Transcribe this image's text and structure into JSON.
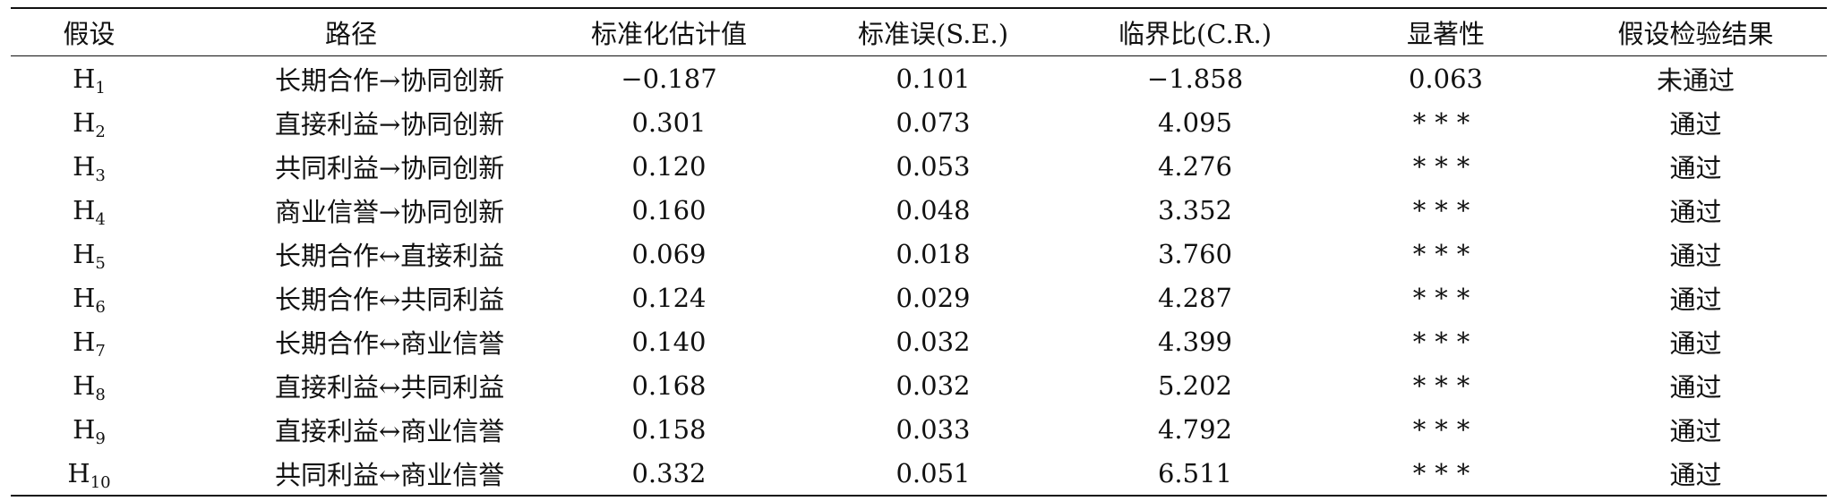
{
  "table": {
    "headers": [
      "假设",
      "路径",
      "标准化估计值",
      "标准误(S.E.)",
      "临界比(C.R.)",
      "显著性",
      "假设检验结果"
    ],
    "rows": [
      {
        "hyp_main": "H",
        "hyp_sub": "1",
        "path": "长期合作→协同创新",
        "estimate": "−0.187",
        "se": "0.101",
        "cr": "−1.858",
        "sig": "0.063",
        "result": "未通过"
      },
      {
        "hyp_main": "H",
        "hyp_sub": "2",
        "path": "直接利益→协同创新",
        "estimate": "0.301",
        "se": "0.073",
        "cr": "4.095",
        "sig": "***",
        "result": "通过"
      },
      {
        "hyp_main": "H",
        "hyp_sub": "3",
        "path": "共同利益→协同创新",
        "estimate": "0.120",
        "se": "0.053",
        "cr": "4.276",
        "sig": "***",
        "result": "通过"
      },
      {
        "hyp_main": "H",
        "hyp_sub": "4",
        "path": "商业信誉→协同创新",
        "estimate": "0.160",
        "se": "0.048",
        "cr": "3.352",
        "sig": "***",
        "result": "通过"
      },
      {
        "hyp_main": "H",
        "hyp_sub": "5",
        "path": "长期合作↔直接利益",
        "estimate": "0.069",
        "se": "0.018",
        "cr": "3.760",
        "sig": "***",
        "result": "通过"
      },
      {
        "hyp_main": "H",
        "hyp_sub": "6",
        "path": "长期合作↔共同利益",
        "estimate": "0.124",
        "se": "0.029",
        "cr": "4.287",
        "sig": "***",
        "result": "通过"
      },
      {
        "hyp_main": "H",
        "hyp_sub": "7",
        "path": "长期合作↔商业信誉",
        "estimate": "0.140",
        "se": "0.032",
        "cr": "4.399",
        "sig": "***",
        "result": "通过"
      },
      {
        "hyp_main": "H",
        "hyp_sub": "8",
        "path": "直接利益↔共同利益",
        "estimate": "0.168",
        "se": "0.032",
        "cr": "5.202",
        "sig": "***",
        "result": "通过"
      },
      {
        "hyp_main": "H",
        "hyp_sub": "9",
        "path": "直接利益↔商业信誉",
        "estimate": "0.158",
        "se": "0.033",
        "cr": "4.792",
        "sig": "***",
        "result": "通过"
      },
      {
        "hyp_main": "H",
        "hyp_sub": "10",
        "path": "共同利益↔商业信誉",
        "estimate": "0.332",
        "se": "0.051",
        "cr": "6.511",
        "sig": "***",
        "result": "通过"
      }
    ]
  }
}
